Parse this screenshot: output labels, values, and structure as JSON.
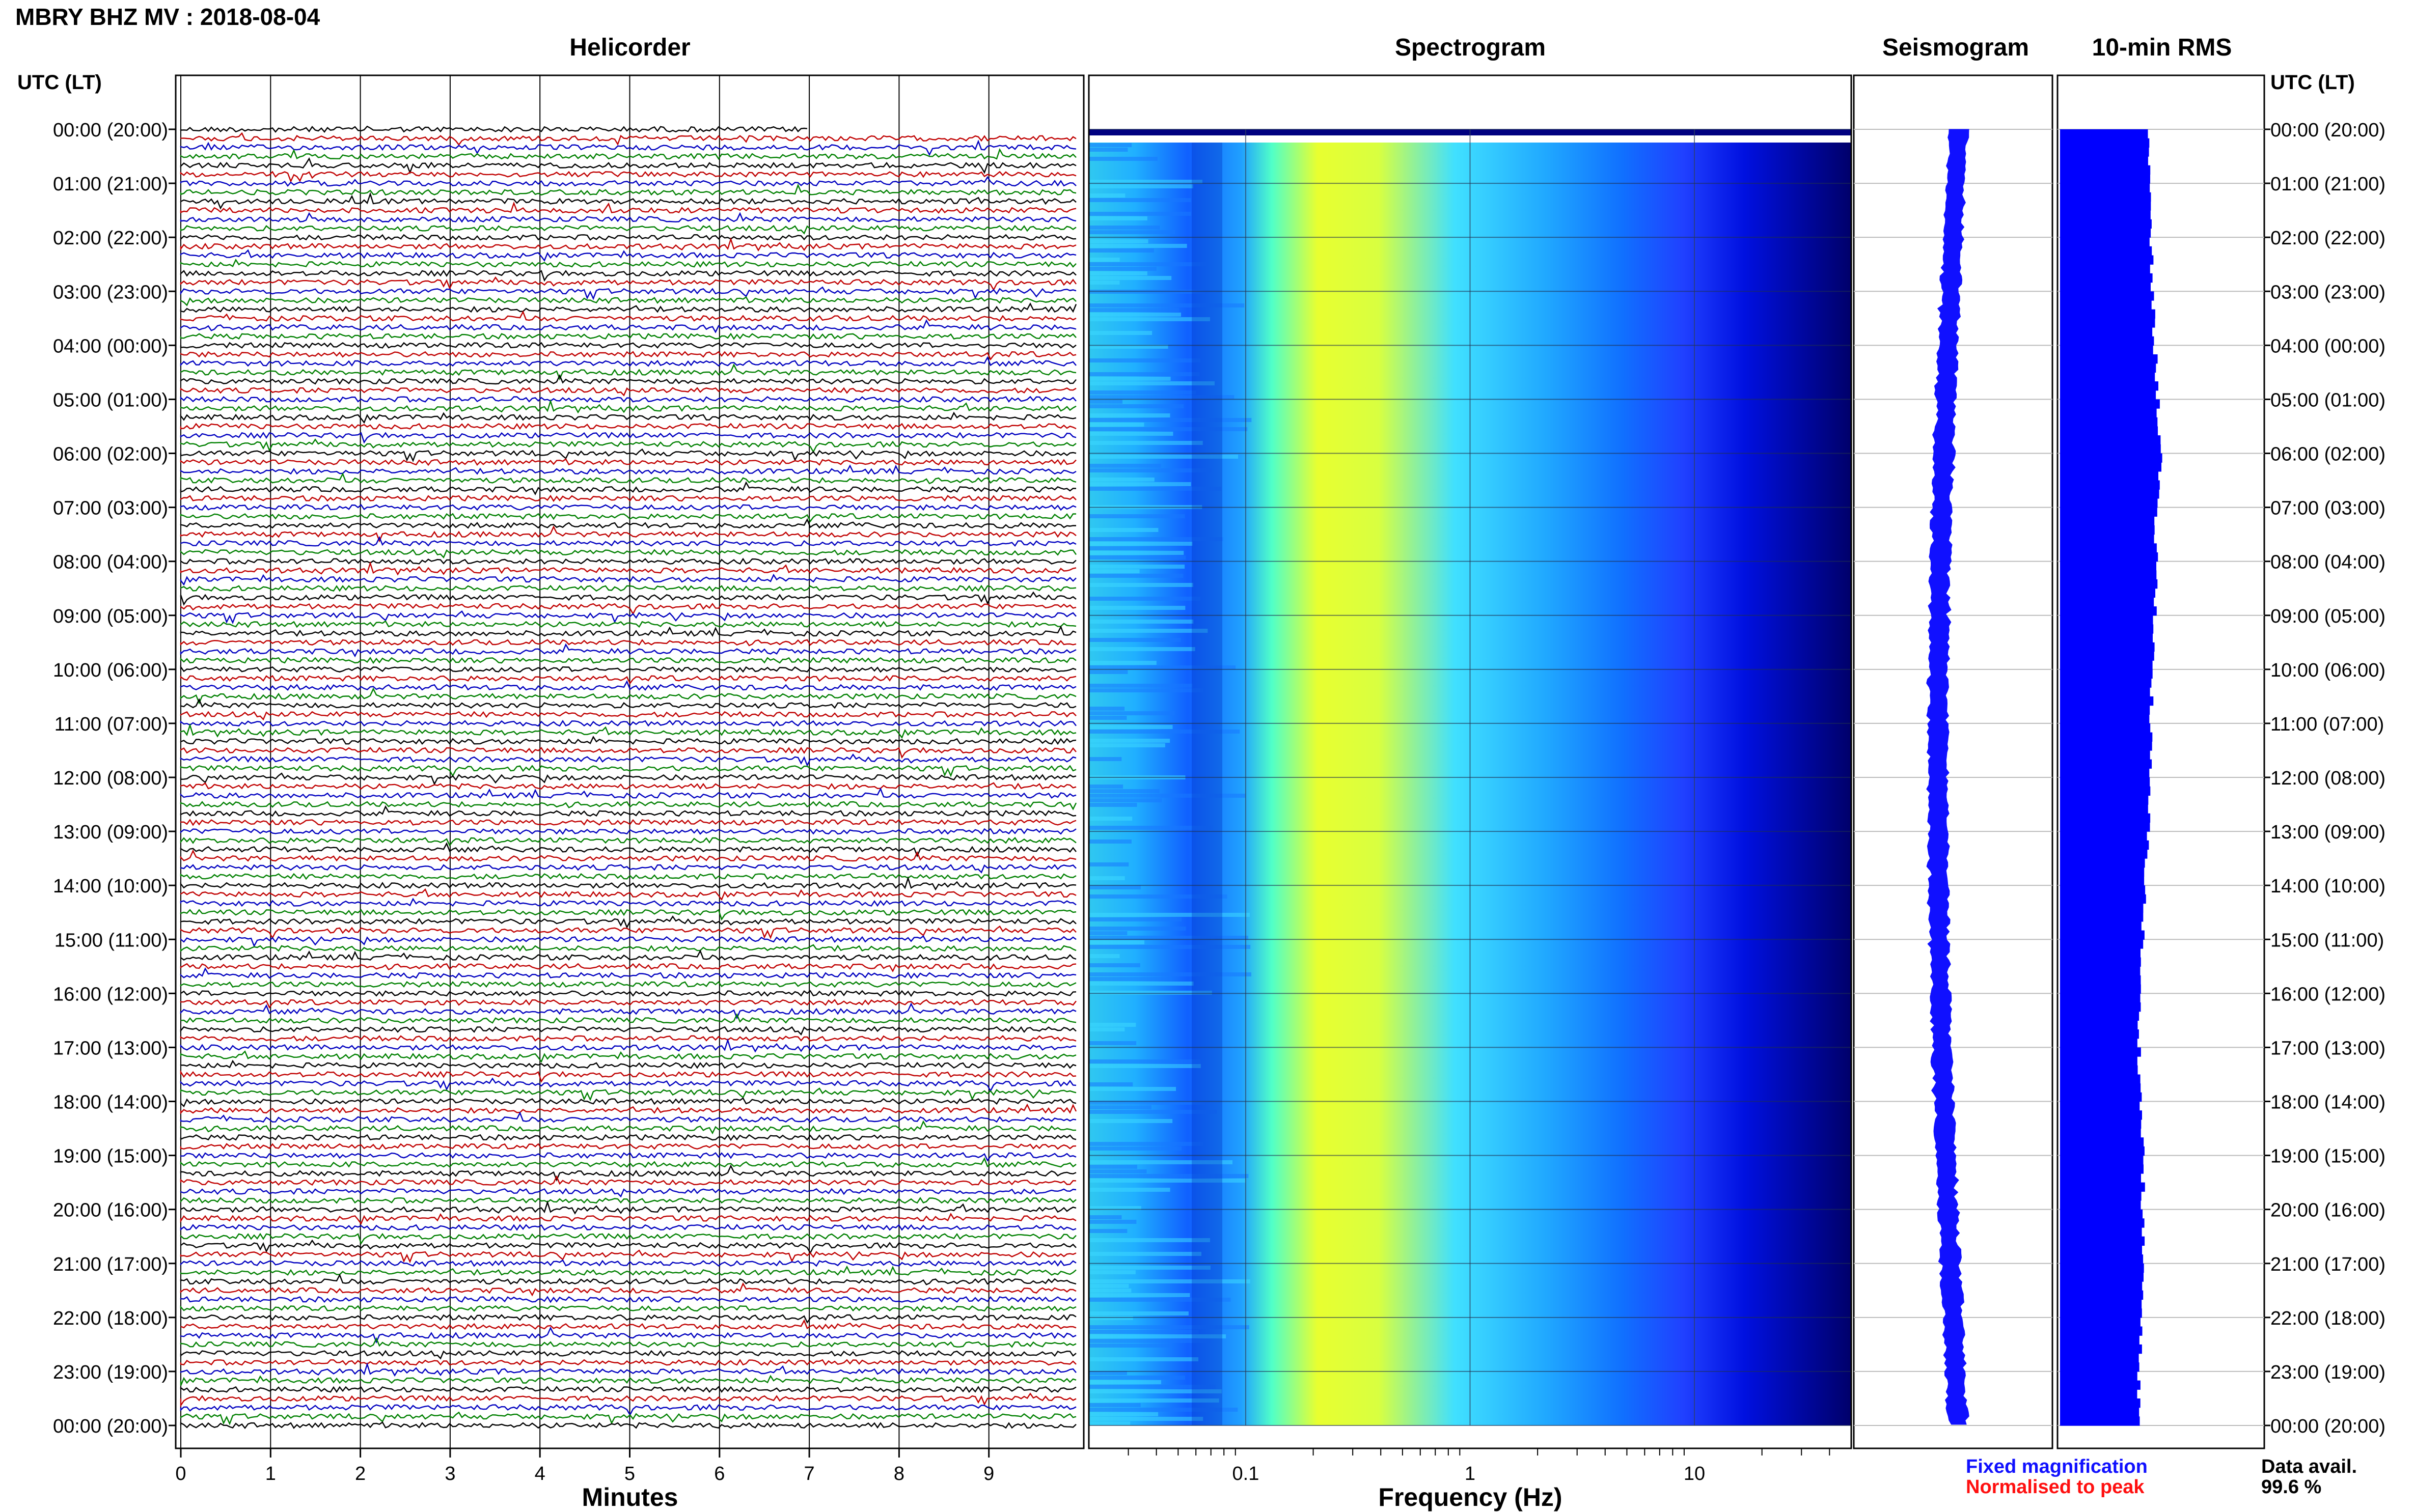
{
  "header": {
    "title": "MBRY BHZ MV : 2018-08-04",
    "utc_label": "UTC (LT)"
  },
  "panels": {
    "helicorder": "Helicorder",
    "spectrogram": "Spectrogram",
    "seismogram": "Seismogram",
    "rms": "10-min RMS"
  },
  "axis_titles": {
    "minutes": "Minutes",
    "frequency": "Frequency (Hz)"
  },
  "legend": {
    "fixed": "Fixed magnification",
    "normalised": "Normalised to peak",
    "fixed_color": "#1010ff",
    "normalised_color": "#ff1010"
  },
  "availability": {
    "label": "Data avail.",
    "value": "99.6 %"
  },
  "chart_data": [
    {
      "type": "line",
      "name": "helicorder",
      "xlabel": "Minutes",
      "x_ticks": [
        "0",
        "1",
        "2",
        "3",
        "4",
        "5",
        "6",
        "7",
        "8",
        "9"
      ],
      "xlim": [
        0,
        10
      ],
      "time_labels": [
        "00:00 (20:00)",
        "01:00 (21:00)",
        "02:00 (22:00)",
        "03:00 (23:00)",
        "04:00 (00:00)",
        "05:00 (01:00)",
        "06:00 (02:00)",
        "07:00 (03:00)",
        "08:00 (04:00)",
        "09:00 (05:00)",
        "10:00 (06:00)",
        "11:00 (07:00)",
        "12:00 (08:00)",
        "13:00 (09:00)",
        "14:00 (10:00)",
        "15:00 (11:00)",
        "16:00 (12:00)",
        "17:00 (13:00)",
        "18:00 (14:00)",
        "19:00 (15:00)",
        "20:00 (16:00)",
        "21:00 (17:00)",
        "22:00 (18:00)",
        "23:00 (19:00)",
        "00:00 (20:00)"
      ],
      "traces_per_hour": 6,
      "trace_colors": [
        "#000000",
        "#c00000",
        "#0000c0",
        "#008000"
      ],
      "grid": true
    },
    {
      "type": "heatmap",
      "name": "spectrogram",
      "xlabel": "Frequency (Hz)",
      "x_scale": "log",
      "xlim": [
        0.02,
        50
      ],
      "x_tick_labels": [
        "0.1",
        "1",
        "10"
      ],
      "colormap": [
        "#00006a",
        "#0000ff",
        "#0080ff",
        "#00d0ff",
        "#40ffd0",
        "#c0ff40",
        "#ffff00"
      ],
      "peak_band_hz": [
        0.22,
        0.6
      ],
      "grid": true
    },
    {
      "type": "line",
      "name": "seismogram",
      "color": "#1010ff",
      "grid": true
    },
    {
      "type": "bar",
      "name": "10-min RMS",
      "color": "#0000ff",
      "orientation": "horizontal",
      "hourly_relative_values": [
        0.62,
        0.62,
        0.63,
        0.64,
        0.66,
        0.68,
        0.7,
        0.66,
        0.67,
        0.66,
        0.64,
        0.63,
        0.62,
        0.61,
        0.59,
        0.57,
        0.55,
        0.55,
        0.56,
        0.58,
        0.57,
        0.58,
        0.56,
        0.55,
        0.55
      ]
    }
  ]
}
